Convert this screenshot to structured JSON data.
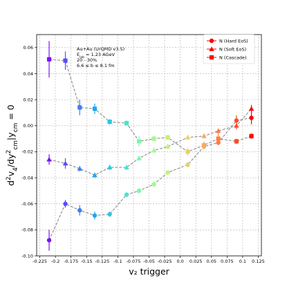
{
  "chart_data": {
    "type": "scatter",
    "xlabel": "v₂ trigger",
    "ylabel_parts": [
      "d",
      "2",
      "v",
      "4",
      "/dy",
      "2",
      "cm",
      "|",
      "y",
      "cm",
      " = 0"
    ],
    "xlim": [
      -0.23,
      0.13
    ],
    "ylim": [
      -0.1,
      0.07
    ],
    "xticks": [
      -0.225,
      -0.2,
      -0.175,
      -0.15,
      -0.125,
      -0.1,
      -0.075,
      -0.05,
      -0.025,
      0.0,
      0.025,
      0.05,
      0.075,
      0.1,
      0.125
    ],
    "xtick_labels": [
      "-0.225",
      "-0.2",
      "-0.175",
      "-0.15",
      "-0.125",
      "-0.1",
      "-0.075",
      "-0.05",
      "-0.025",
      "0.0",
      "0.025",
      "0.05",
      "0.075",
      "0.1",
      "0.125"
    ],
    "yticks": [
      -0.1,
      -0.08,
      -0.06,
      -0.04,
      -0.02,
      0.0,
      0.02,
      0.04,
      0.06
    ],
    "ytick_labels": [
      "-0.10",
      "-0.08",
      "-0.06",
      "-0.04",
      "-0.02",
      "0.00",
      "0.02",
      "0.04",
      "0.06"
    ],
    "grid": true,
    "legend_position": "top-right",
    "annotation": {
      "line1": "Au+Au (UrQMD v3.5)",
      "line2_main": "E",
      "line2_sub": "lab",
      "line2_rest": " = 1.23 AGeV",
      "line3": "20 - 30%",
      "line4": "6.6 ≤ b ≤ 8.1 fm"
    },
    "series": [
      {
        "name": "N (Hard EoS)",
        "marker": "circle",
        "x": [
          -0.21,
          -0.184,
          -0.161,
          -0.137,
          -0.113,
          -0.086,
          -0.066,
          -0.042,
          -0.02,
          0.012,
          0.038,
          0.061,
          0.09,
          0.114
        ],
        "y": [
          -0.088,
          -0.06,
          -0.065,
          -0.069,
          -0.068,
          -0.053,
          -0.05,
          -0.045,
          -0.036,
          -0.03,
          -0.016,
          -0.013,
          0.004,
          0.006
        ],
        "err": [
          0.008,
          0.003,
          0.004,
          0.003,
          0.002,
          0.002,
          0.002,
          0.002,
          0.002,
          0.002,
          0.002,
          0.002,
          0.004,
          0.005
        ]
      },
      {
        "name": "N (Soft EoS)",
        "marker": "triangle",
        "x": [
          -0.21,
          -0.184,
          -0.161,
          -0.137,
          -0.113,
          -0.086,
          -0.066,
          -0.042,
          -0.02,
          0.012,
          0.038,
          0.061,
          0.09,
          0.114
        ],
        "y": [
          -0.026,
          -0.029,
          -0.033,
          -0.038,
          -0.032,
          -0.032,
          -0.025,
          -0.019,
          -0.016,
          -0.009,
          -0.008,
          -0.004,
          0.0,
          0.013
        ],
        "err": [
          0.004,
          0.004,
          0.002,
          0.002,
          0.002,
          0.002,
          0.002,
          0.002,
          0.002,
          0.002,
          0.002,
          0.002,
          0.003,
          0.003
        ]
      },
      {
        "name": "N (Cascade)",
        "marker": "square",
        "x": [
          -0.21,
          -0.184,
          -0.161,
          -0.137,
          -0.113,
          -0.086,
          -0.066,
          -0.042,
          -0.02,
          0.012,
          0.038,
          0.061,
          0.09,
          0.114
        ],
        "y": [
          0.051,
          0.05,
          0.014,
          0.013,
          0.003,
          0.002,
          -0.012,
          -0.01,
          -0.009,
          -0.02,
          -0.015,
          -0.01,
          -0.012,
          -0.008
        ],
        "err": [
          0.014,
          0.007,
          0.006,
          0.004,
          0.002,
          0.002,
          0.004,
          0.002,
          0.002,
          0.003,
          0.003,
          0.004,
          0.002,
          0.002
        ]
      }
    ],
    "point_colors": [
      "#7a12f5",
      "#5a4bfb",
      "#3c7df5",
      "#1ea7ed",
      "#27c8e0",
      "#4be3cc",
      "#7cf7ad",
      "#9ffb8f",
      "#c8ef76",
      "#e8d26a",
      "#f9ab5a",
      "#ff7d43",
      "#ff4a26",
      "#ff0000"
    ],
    "legend_color": "#ff0000"
  }
}
